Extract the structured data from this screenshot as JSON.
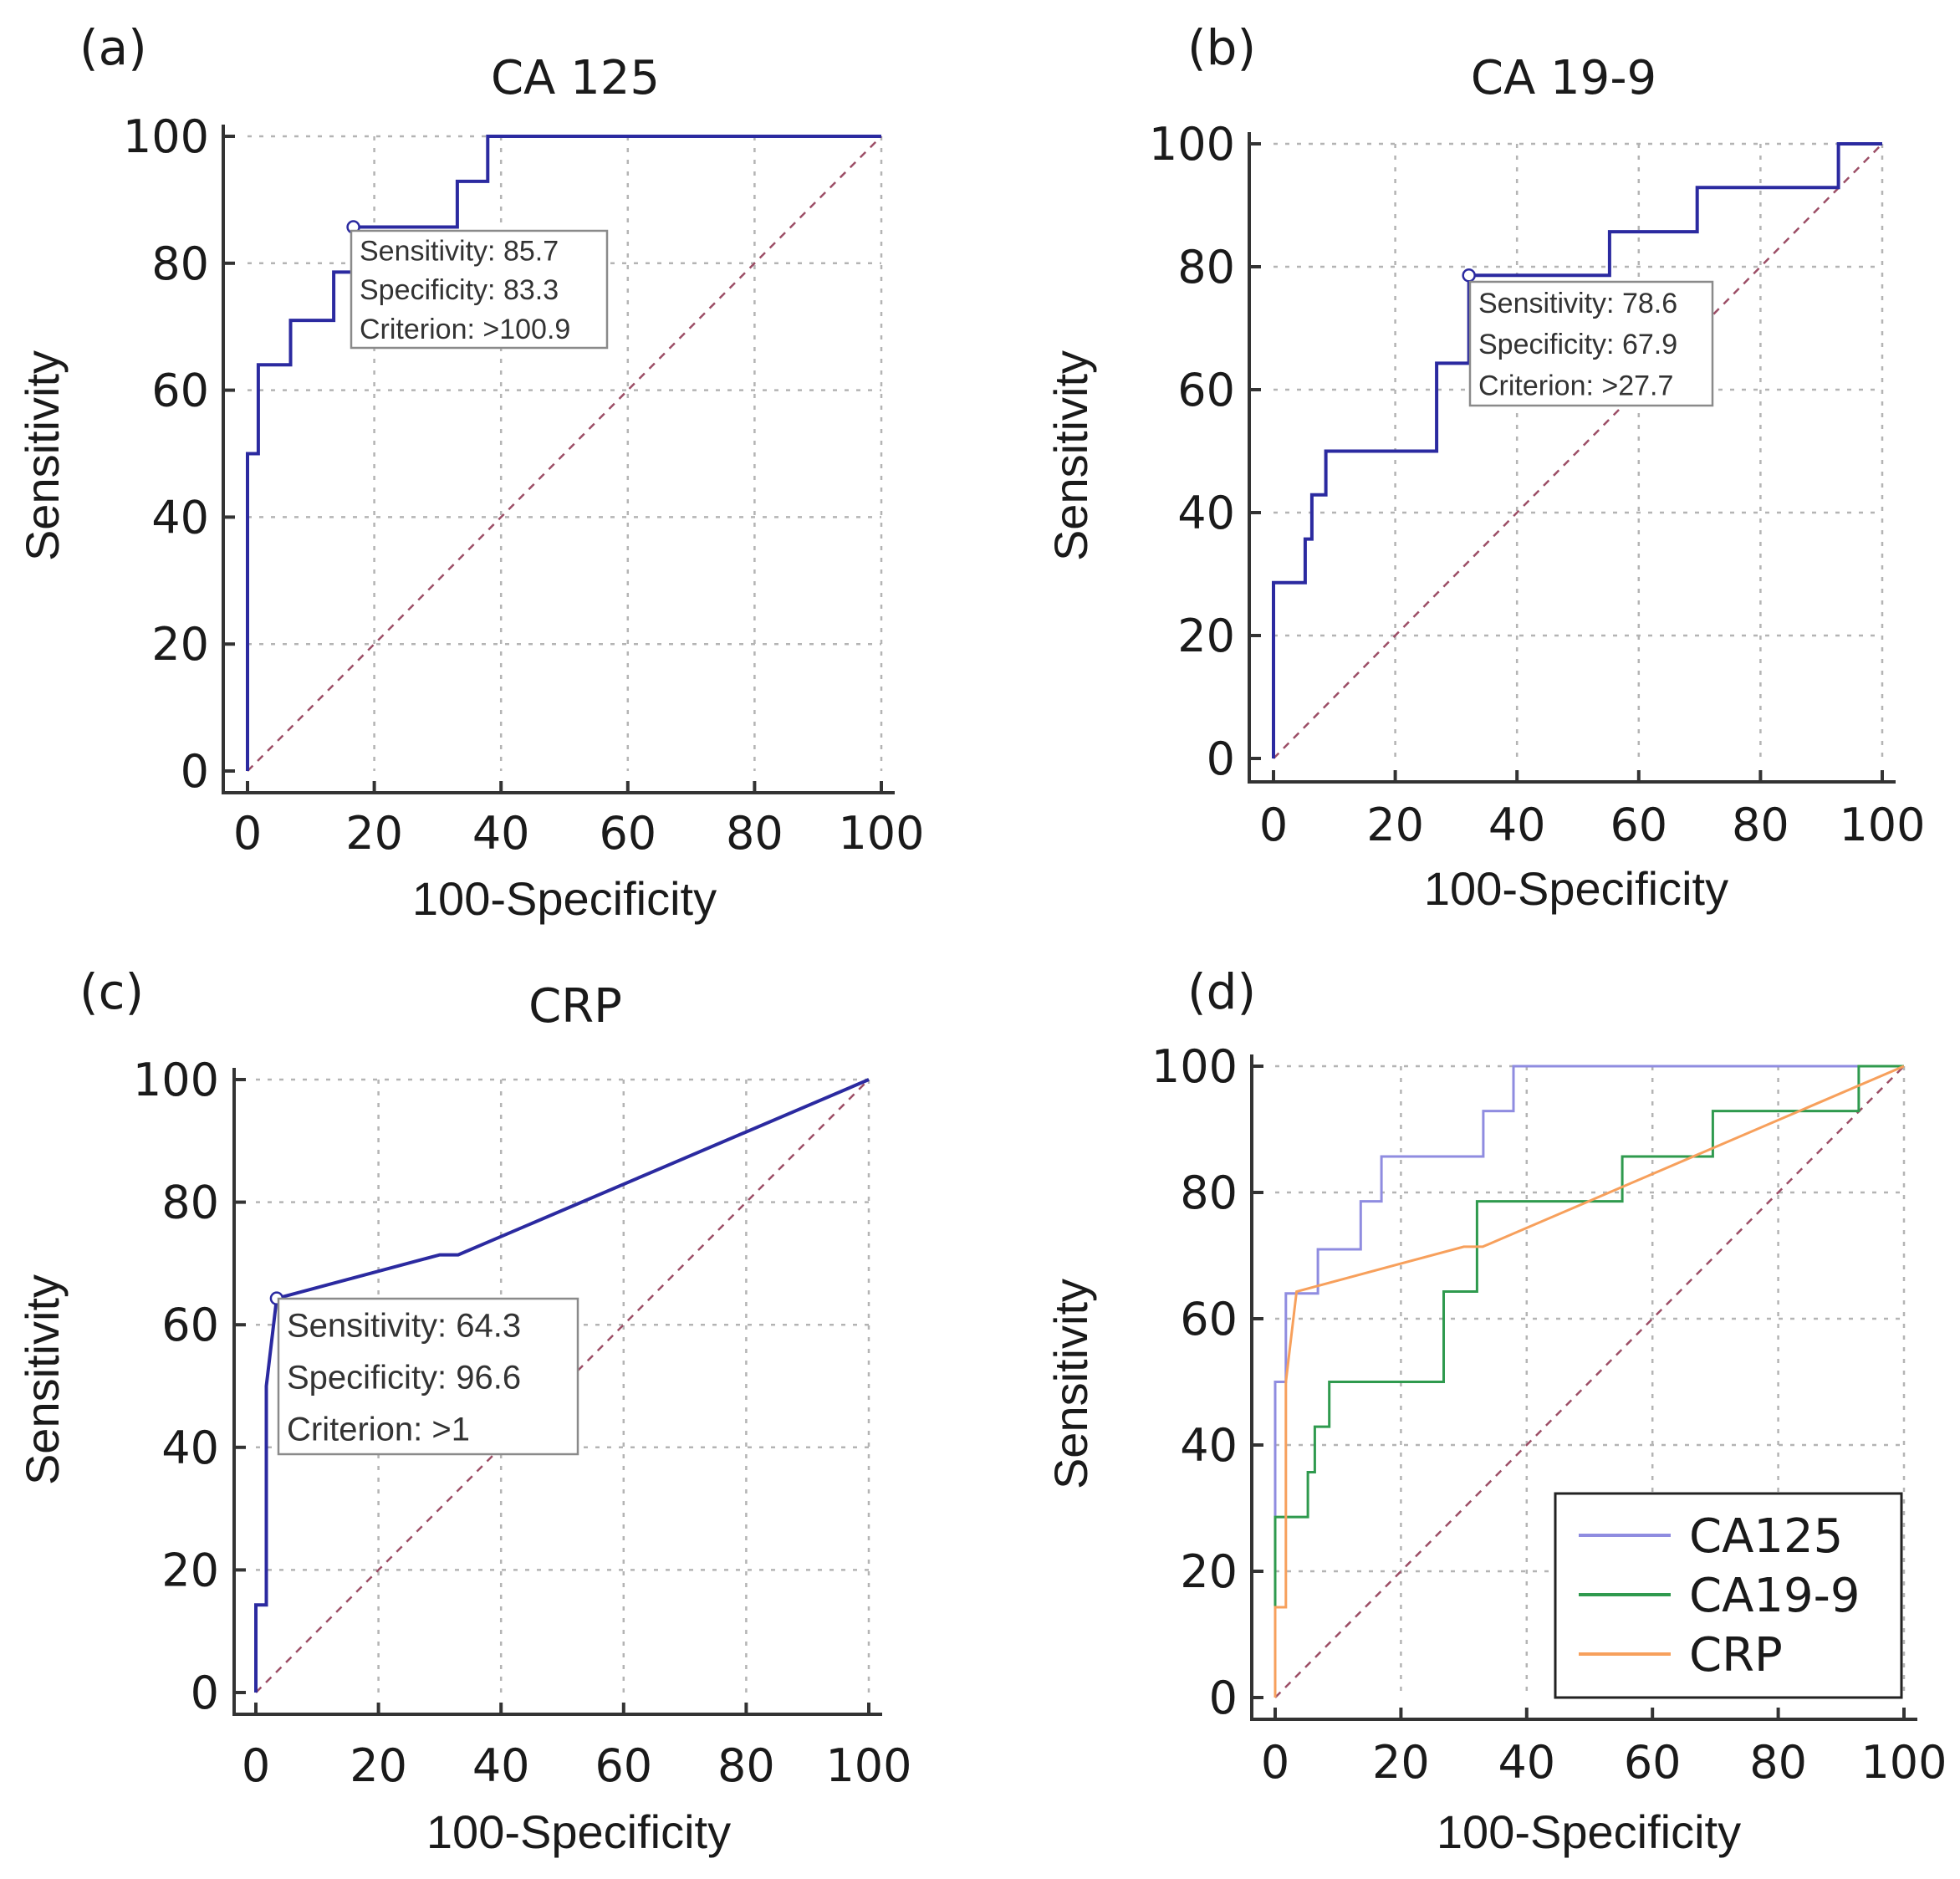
{
  "colors": {
    "roc_line": "#2b2aa0",
    "ca125": "#8f8ce0",
    "ca199": "#2f9a4e",
    "crp": "#f7a05c",
    "reference": "#9c4e66",
    "grid": "#b4b4b4"
  },
  "chart_data": [
    {
      "panel": "(a)",
      "type": "line",
      "title": "CA 125",
      "xlabel": "100-Specificity",
      "ylabel": "Sensitivity",
      "xlim": [
        0,
        100
      ],
      "ylim": [
        0,
        100
      ],
      "xticks": [
        "0",
        "20",
        "40",
        "60",
        "80",
        "100"
      ],
      "yticks": [
        "0",
        "20",
        "40",
        "60",
        "80",
        "100"
      ],
      "grid": true,
      "reference_line": true,
      "series": [
        {
          "name": "CA 125",
          "color_key": "roc_line",
          "x": [
            0,
            0,
            0,
            1.7,
            1.7,
            6.8,
            6.8,
            13.6,
            13.6,
            16.9,
            16.9,
            33.1,
            33.1,
            37.9,
            37.9,
            100
          ],
          "y": [
            0,
            14,
            50,
            50,
            64,
            64,
            71,
            71,
            78.6,
            78.6,
            85.7,
            85.7,
            92.9,
            92.9,
            100,
            100
          ]
        }
      ],
      "criterion_point": {
        "x": 16.7,
        "y": 85.7
      },
      "annotation": [
        "Sensitivity: 85.7",
        "Specificity: 83.3",
        "Criterion: >100.9"
      ]
    },
    {
      "panel": "(b)",
      "type": "line",
      "title": "CA 19-9",
      "xlabel": "100-Specificity",
      "ylabel": "Sensitivity",
      "xlim": [
        0,
        100
      ],
      "ylim": [
        0,
        100
      ],
      "xticks": [
        "0",
        "20",
        "40",
        "60",
        "80",
        "100"
      ],
      "yticks": [
        "0",
        "20",
        "40",
        "60",
        "80",
        "100"
      ],
      "grid": true,
      "reference_line": true,
      "series": [
        {
          "name": "CA 19-9",
          "color_key": "roc_line",
          "x": [
            0,
            0,
            5.2,
            5.2,
            6.3,
            6.3,
            8.6,
            8.6,
            26.8,
            26.8,
            32.1,
            32.1,
            55.2,
            55.2,
            69.6,
            69.6,
            92.8,
            92.8,
            100
          ],
          "y": [
            0,
            28.6,
            28.6,
            35.7,
            35.7,
            42.9,
            42.9,
            50,
            50,
            64.3,
            64.3,
            78.6,
            78.6,
            85.7,
            85.7,
            92.9,
            92.9,
            100,
            100
          ]
        }
      ],
      "criterion_point": {
        "x": 32.1,
        "y": 78.6
      },
      "annotation": [
        "Sensitivity: 78.6",
        "Specificity: 67.9",
        "Criterion: >27.7"
      ]
    },
    {
      "panel": "(c)",
      "type": "line",
      "title": "CRP",
      "xlabel": "100-Specificity",
      "ylabel": "Sensitivity",
      "xlim": [
        0,
        100
      ],
      "ylim": [
        0,
        100
      ],
      "xticks": [
        "0",
        "20",
        "40",
        "60",
        "80",
        "100"
      ],
      "yticks": [
        "0",
        "20",
        "40",
        "60",
        "80",
        "100"
      ],
      "grid": true,
      "reference_line": true,
      "series": [
        {
          "name": "CRP",
          "color_key": "roc_line",
          "x": [
            0,
            0,
            1.7,
            1.7,
            3.4,
            30,
            33,
            100
          ],
          "y": [
            0,
            14.3,
            14.3,
            50,
            64.3,
            71.4,
            71.4,
            100
          ]
        }
      ],
      "criterion_point": {
        "x": 3.4,
        "y": 64.3
      },
      "annotation": [
        "Sensitivity: 64.3",
        "Specificity: 96.6",
        "Criterion: >1"
      ]
    },
    {
      "panel": "(d)",
      "type": "line",
      "title": "",
      "xlabel": "100-Specificity",
      "ylabel": "Sensitivity",
      "xlim": [
        0,
        100
      ],
      "ylim": [
        0,
        100
      ],
      "xticks": [
        "0",
        "20",
        "40",
        "60",
        "80",
        "100"
      ],
      "yticks": [
        "0",
        "20",
        "40",
        "60",
        "80",
        "100"
      ],
      "grid": true,
      "reference_line": true,
      "legend_position": "bottom-right",
      "series": [
        {
          "name": "CA125",
          "color_key": "ca125",
          "x": [
            0,
            0,
            0,
            1.7,
            1.7,
            6.8,
            6.8,
            13.6,
            13.6,
            16.9,
            16.9,
            33.1,
            33.1,
            37.9,
            37.9,
            100
          ],
          "y": [
            0,
            14,
            50,
            50,
            64,
            64,
            71,
            71,
            78.6,
            78.6,
            85.7,
            85.7,
            92.9,
            92.9,
            100,
            100
          ]
        },
        {
          "name": "CA19-9",
          "color_key": "ca199",
          "x": [
            0,
            0,
            5.2,
            5.2,
            6.3,
            6.3,
            8.6,
            8.6,
            26.8,
            26.8,
            32.1,
            32.1,
            55.2,
            55.2,
            69.6,
            69.6,
            92.8,
            92.8,
            100
          ],
          "y": [
            0,
            28.6,
            28.6,
            35.7,
            35.7,
            42.9,
            42.9,
            50,
            50,
            64.3,
            64.3,
            78.6,
            78.6,
            85.7,
            85.7,
            92.9,
            92.9,
            100,
            100
          ]
        },
        {
          "name": "CRP",
          "color_key": "crp",
          "x": [
            0,
            0,
            1.7,
            1.7,
            3.4,
            30,
            33,
            100
          ],
          "y": [
            0,
            14.3,
            14.3,
            50,
            64.3,
            71.4,
            71.4,
            100
          ]
        }
      ]
    }
  ]
}
